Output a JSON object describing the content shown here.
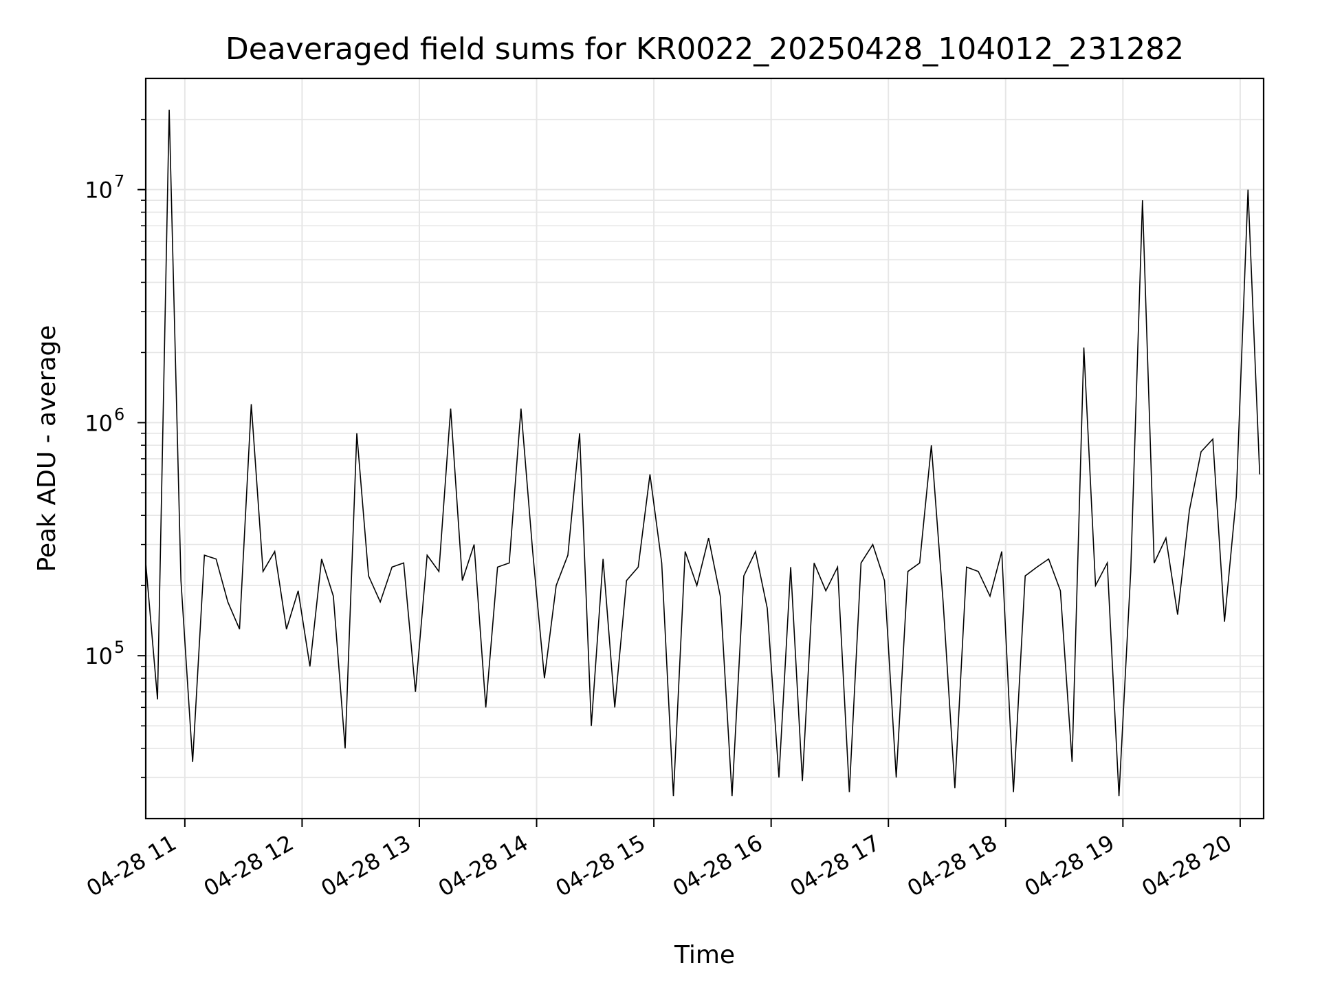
{
  "chart_data": {
    "type": "line",
    "title": "Deaveraged field sums for KR0022_20250428_104012_231282",
    "xlabel": "Time",
    "ylabel": "Peak ADU - average",
    "yscale": "log",
    "ylim": [
      20000,
      30000000
    ],
    "xlim": [
      "2025-04-28 10:40",
      "2025-04-28 20:12"
    ],
    "grid": true,
    "line_color": "#000000",
    "grid_color": "#e6e6e6",
    "x_ticks": [
      {
        "value": "2025-04-28 11:00",
        "label": "04-28 11"
      },
      {
        "value": "2025-04-28 12:00",
        "label": "04-28 12"
      },
      {
        "value": "2025-04-28 13:00",
        "label": "04-28 13"
      },
      {
        "value": "2025-04-28 14:00",
        "label": "04-28 14"
      },
      {
        "value": "2025-04-28 15:00",
        "label": "04-28 15"
      },
      {
        "value": "2025-04-28 16:00",
        "label": "04-28 16"
      },
      {
        "value": "2025-04-28 17:00",
        "label": "04-28 17"
      },
      {
        "value": "2025-04-28 18:00",
        "label": "04-28 18"
      },
      {
        "value": "2025-04-28 19:00",
        "label": "04-28 19"
      },
      {
        "value": "2025-04-28 20:00",
        "label": "04-28 20"
      }
    ],
    "y_ticks": [
      {
        "value": 100000,
        "base": "10",
        "exp": "5"
      },
      {
        "value": 1000000,
        "base": "10",
        "exp": "6"
      },
      {
        "value": 10000000,
        "base": "10",
        "exp": "7"
      }
    ],
    "series": [
      {
        "x": [
          "2025-04-28 10:40",
          "2025-04-28 10:46",
          "2025-04-28 10:52",
          "2025-04-28 10:58",
          "2025-04-28 11:04",
          "2025-04-28 11:10",
          "2025-04-28 11:16",
          "2025-04-28 11:22",
          "2025-04-28 11:28",
          "2025-04-28 11:34",
          "2025-04-28 11:40",
          "2025-04-28 11:46",
          "2025-04-28 11:52",
          "2025-04-28 11:58",
          "2025-04-28 12:04",
          "2025-04-28 12:10",
          "2025-04-28 12:16",
          "2025-04-28 12:22",
          "2025-04-28 12:28",
          "2025-04-28 12:34",
          "2025-04-28 12:40",
          "2025-04-28 12:46",
          "2025-04-28 12:52",
          "2025-04-28 12:58",
          "2025-04-28 13:04",
          "2025-04-28 13:10",
          "2025-04-28 13:16",
          "2025-04-28 13:22",
          "2025-04-28 13:28",
          "2025-04-28 13:34",
          "2025-04-28 13:40",
          "2025-04-28 13:46",
          "2025-04-28 13:52",
          "2025-04-28 13:58",
          "2025-04-28 14:04",
          "2025-04-28 14:10",
          "2025-04-28 14:16",
          "2025-04-28 14:22",
          "2025-04-28 14:28",
          "2025-04-28 14:34",
          "2025-04-28 14:40",
          "2025-04-28 14:46",
          "2025-04-28 14:52",
          "2025-04-28 14:58",
          "2025-04-28 15:04",
          "2025-04-28 15:10",
          "2025-04-28 15:16",
          "2025-04-28 15:22",
          "2025-04-28 15:28",
          "2025-04-28 15:34",
          "2025-04-28 15:40",
          "2025-04-28 15:46",
          "2025-04-28 15:52",
          "2025-04-28 15:58",
          "2025-04-28 16:04",
          "2025-04-28 16:10",
          "2025-04-28 16:16",
          "2025-04-28 16:22",
          "2025-04-28 16:28",
          "2025-04-28 16:34",
          "2025-04-28 16:40",
          "2025-04-28 16:46",
          "2025-04-28 16:52",
          "2025-04-28 16:58",
          "2025-04-28 17:04",
          "2025-04-28 17:10",
          "2025-04-28 17:16",
          "2025-04-28 17:22",
          "2025-04-28 17:28",
          "2025-04-28 17:34",
          "2025-04-28 17:40",
          "2025-04-28 17:46",
          "2025-04-28 17:52",
          "2025-04-28 17:58",
          "2025-04-28 18:04",
          "2025-04-28 18:10",
          "2025-04-28 18:16",
          "2025-04-28 18:22",
          "2025-04-28 18:28",
          "2025-04-28 18:34",
          "2025-04-28 18:40",
          "2025-04-28 18:46",
          "2025-04-28 18:52",
          "2025-04-28 18:58",
          "2025-04-28 19:04",
          "2025-04-28 19:10",
          "2025-04-28 19:16",
          "2025-04-28 19:22",
          "2025-04-28 19:28",
          "2025-04-28 19:34",
          "2025-04-28 19:40",
          "2025-04-28 19:46",
          "2025-04-28 19:52",
          "2025-04-28 19:58",
          "2025-04-28 20:04",
          "2025-04-28 20:10"
        ],
        "y": [
          250000,
          65000,
          22000000,
          210000,
          35000,
          270000,
          260000,
          170000,
          130000,
          1200000,
          230000,
          280000,
          130000,
          190000,
          90000,
          260000,
          180000,
          40000,
          900000,
          220000,
          170000,
          240000,
          250000,
          70000,
          270000,
          230000,
          1150000,
          210000,
          300000,
          60000,
          240000,
          250000,
          1150000,
          280000,
          80000,
          200000,
          270000,
          900000,
          50000,
          260000,
          60000,
          210000,
          240000,
          600000,
          250000,
          25000,
          280000,
          200000,
          320000,
          180000,
          25000,
          220000,
          280000,
          160000,
          30000,
          240000,
          29000,
          250000,
          190000,
          240000,
          26000,
          250000,
          300000,
          210000,
          30000,
          230000,
          250000,
          800000,
          170000,
          27000,
          240000,
          230000,
          180000,
          280000,
          26000,
          220000,
          240000,
          260000,
          190000,
          35000,
          2100000,
          200000,
          250000,
          25000,
          230000,
          9000000,
          250000,
          320000,
          150000,
          420000,
          750000,
          850000,
          140000,
          480000,
          10000000,
          600000
        ]
      }
    ]
  }
}
